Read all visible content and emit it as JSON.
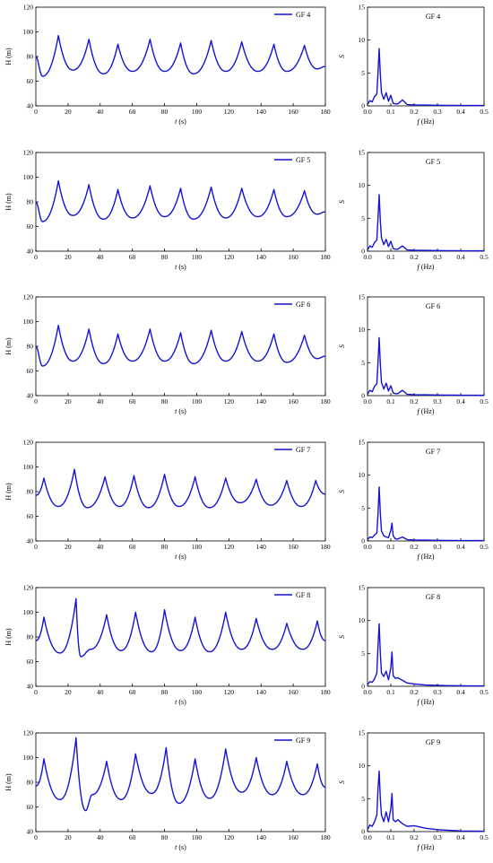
{
  "colors": {
    "series": "#1414d2",
    "axes": "#000000"
  },
  "chart_data": [
    {
      "type": "line",
      "panel": "time",
      "legend": "GF 4",
      "legend_placement": "top-right",
      "xlabel_prefix": "t",
      "xlabel_suffix": " (s)",
      "ylabel": "H (m)",
      "xlim": [
        0,
        180
      ],
      "ylim": [
        40,
        120
      ],
      "xticks": [
        0,
        20,
        40,
        60,
        80,
        100,
        120,
        140,
        160,
        180
      ],
      "yticks": [
        40,
        60,
        80,
        100,
        120
      ],
      "grid": false,
      "peaks": [
        [
          14,
          97
        ],
        [
          33,
          94
        ],
        [
          51,
          90
        ],
        [
          71,
          94
        ],
        [
          90,
          91
        ],
        [
          109,
          93
        ],
        [
          128,
          92
        ],
        [
          148,
          90
        ],
        [
          167,
          89
        ]
      ],
      "troughs": [
        [
          0,
          80
        ],
        [
          4,
          64
        ],
        [
          23,
          69
        ],
        [
          42,
          66
        ],
        [
          60,
          68
        ],
        [
          80,
          68
        ],
        [
          98,
          66
        ],
        [
          118,
          68
        ],
        [
          138,
          68
        ],
        [
          156,
          68
        ],
        [
          175,
          70
        ],
        [
          180,
          72
        ]
      ]
    },
    {
      "type": "line",
      "panel": "spectrum",
      "legend": "GF 4",
      "legend_placement": "top-right",
      "xlabel_prefix": "f",
      "xlabel_suffix": " (Hz)",
      "ylabel": "S",
      "xlim": [
        0,
        0.5
      ],
      "ylim": [
        0,
        15
      ],
      "xticks": [
        "0.0",
        "0.1",
        "0.2",
        "0.3",
        "0.4",
        "0.5"
      ],
      "yticks": [
        0,
        5,
        10,
        15
      ],
      "grid": false,
      "x": [
        0,
        0.01,
        0.02,
        0.03,
        0.04,
        0.045,
        0.05,
        0.055,
        0.06,
        0.07,
        0.08,
        0.09,
        0.1,
        0.11,
        0.12,
        0.13,
        0.15,
        0.17,
        0.2,
        0.25,
        0.3,
        0.35,
        0.4,
        0.45,
        0.5
      ],
      "y": [
        0.2,
        0.8,
        0.6,
        1.4,
        1.8,
        5.0,
        8.7,
        4.8,
        2.0,
        1.0,
        2.0,
        0.7,
        1.6,
        0.4,
        0.3,
        0.3,
        0.9,
        0.2,
        0.15,
        0.12,
        0.1,
        0.08,
        0.06,
        0.05,
        0.05
      ]
    },
    {
      "type": "line",
      "panel": "time",
      "legend": "GF 5",
      "legend_placement": "top-right",
      "xlabel_prefix": "t",
      "xlabel_suffix": " (s)",
      "ylabel": "H (m)",
      "xlim": [
        0,
        180
      ],
      "ylim": [
        40,
        120
      ],
      "xticks": [
        0,
        20,
        40,
        60,
        80,
        100,
        120,
        140,
        160,
        180
      ],
      "yticks": [
        40,
        60,
        80,
        100,
        120
      ],
      "grid": false,
      "peaks": [
        [
          14,
          97
        ],
        [
          33,
          94
        ],
        [
          51,
          90
        ],
        [
          71,
          93
        ],
        [
          90,
          91
        ],
        [
          109,
          92
        ],
        [
          128,
          91
        ],
        [
          148,
          90
        ],
        [
          167,
          89
        ]
      ],
      "troughs": [
        [
          0,
          80
        ],
        [
          4,
          64
        ],
        [
          23,
          69
        ],
        [
          42,
          66
        ],
        [
          60,
          67
        ],
        [
          80,
          68
        ],
        [
          98,
          66
        ],
        [
          118,
          67
        ],
        [
          138,
          68
        ],
        [
          156,
          68
        ],
        [
          175,
          70
        ],
        [
          180,
          72
        ]
      ]
    },
    {
      "type": "line",
      "panel": "spectrum",
      "legend": "GF 5",
      "legend_placement": "top-right",
      "xlabel_prefix": "f",
      "xlabel_suffix": " (Hz)",
      "ylabel": "S",
      "xlim": [
        0,
        0.5
      ],
      "ylim": [
        0,
        15
      ],
      "xticks": [
        "0.0",
        "0.1",
        "0.2",
        "0.3",
        "0.4",
        "0.5"
      ],
      "yticks": [
        0,
        5,
        10,
        15
      ],
      "grid": false,
      "x": [
        0,
        0.01,
        0.02,
        0.03,
        0.04,
        0.045,
        0.05,
        0.055,
        0.06,
        0.07,
        0.08,
        0.09,
        0.1,
        0.11,
        0.12,
        0.13,
        0.15,
        0.17,
        0.2,
        0.25,
        0.3,
        0.35,
        0.4,
        0.45,
        0.5
      ],
      "y": [
        0.2,
        0.8,
        0.6,
        1.3,
        1.7,
        5.0,
        8.6,
        4.6,
        2.0,
        1.0,
        1.8,
        0.7,
        1.5,
        0.4,
        0.3,
        0.3,
        0.8,
        0.2,
        0.15,
        0.12,
        0.1,
        0.08,
        0.06,
        0.05,
        0.05
      ]
    },
    {
      "type": "line",
      "panel": "time",
      "legend": "GF 6",
      "legend_placement": "top-right",
      "xlabel_prefix": "t",
      "xlabel_suffix": " (s)",
      "ylabel": "H (m)",
      "xlim": [
        0,
        180
      ],
      "ylim": [
        40,
        120
      ],
      "xticks": [
        0,
        20,
        40,
        60,
        80,
        100,
        120,
        140,
        160,
        180
      ],
      "yticks": [
        40,
        60,
        80,
        100,
        120
      ],
      "grid": false,
      "peaks": [
        [
          14,
          97
        ],
        [
          33,
          94
        ],
        [
          51,
          90
        ],
        [
          71,
          94
        ],
        [
          90,
          91
        ],
        [
          109,
          93
        ],
        [
          128,
          92
        ],
        [
          148,
          90
        ],
        [
          167,
          89
        ]
      ],
      "troughs": [
        [
          0,
          80
        ],
        [
          4,
          64
        ],
        [
          23,
          68
        ],
        [
          42,
          66
        ],
        [
          60,
          68
        ],
        [
          80,
          68
        ],
        [
          98,
          66
        ],
        [
          118,
          68
        ],
        [
          138,
          68
        ],
        [
          156,
          67
        ],
        [
          175,
          70
        ],
        [
          180,
          72
        ]
      ]
    },
    {
      "type": "line",
      "panel": "spectrum",
      "legend": "GF 6",
      "legend_placement": "top-right",
      "xlabel_prefix": "f",
      "xlabel_suffix": " (Hz)",
      "ylabel": "S",
      "xlim": [
        0,
        0.5
      ],
      "ylim": [
        0,
        15
      ],
      "xticks": [
        "0.0",
        "0.1",
        "0.2",
        "0.3",
        "0.4",
        "0.5"
      ],
      "yticks": [
        0,
        5,
        10,
        15
      ],
      "grid": false,
      "x": [
        0,
        0.01,
        0.02,
        0.03,
        0.04,
        0.045,
        0.05,
        0.055,
        0.06,
        0.07,
        0.08,
        0.09,
        0.1,
        0.11,
        0.12,
        0.13,
        0.15,
        0.17,
        0.2,
        0.25,
        0.3,
        0.35,
        0.4,
        0.45,
        0.5
      ],
      "y": [
        0.2,
        0.8,
        0.6,
        1.4,
        1.8,
        5.0,
        8.8,
        4.8,
        2.0,
        1.0,
        1.9,
        0.7,
        1.5,
        0.4,
        0.3,
        0.3,
        0.8,
        0.2,
        0.15,
        0.12,
        0.1,
        0.08,
        0.06,
        0.05,
        0.05
      ]
    },
    {
      "type": "line",
      "panel": "time",
      "legend": "GF 7",
      "legend_placement": "top-right",
      "xlabel_prefix": "t",
      "xlabel_suffix": " (s)",
      "ylabel": "H (m)",
      "xlim": [
        0,
        180
      ],
      "ylim": [
        40,
        120
      ],
      "xticks": [
        0,
        20,
        40,
        60,
        80,
        100,
        120,
        140,
        160,
        180
      ],
      "yticks": [
        40,
        60,
        80,
        100,
        120
      ],
      "grid": false,
      "peaks": [
        [
          5,
          91
        ],
        [
          24,
          98
        ],
        [
          43,
          92
        ],
        [
          61,
          93
        ],
        [
          80,
          94
        ],
        [
          99,
          92
        ],
        [
          118,
          91
        ],
        [
          137,
          90
        ],
        [
          156,
          89
        ],
        [
          174,
          89
        ]
      ],
      "troughs": [
        [
          0,
          77
        ],
        [
          14,
          68
        ],
        [
          32,
          67
        ],
        [
          52,
          68
        ],
        [
          70,
          67
        ],
        [
          89,
          68
        ],
        [
          108,
          67
        ],
        [
          127,
          71
        ],
        [
          146,
          69
        ],
        [
          165,
          68
        ],
        [
          180,
          78
        ]
      ]
    },
    {
      "type": "line",
      "panel": "spectrum",
      "legend": "GF 7",
      "legend_placement": "top-right",
      "xlabel_prefix": "f",
      "xlabel_suffix": " (Hz)",
      "ylabel": "S",
      "xlim": [
        0,
        0.5
      ],
      "ylim": [
        0,
        15
      ],
      "xticks": [
        "0.0",
        "0.1",
        "0.2",
        "0.3",
        "0.4",
        "0.5"
      ],
      "yticks": [
        0,
        5,
        10,
        15
      ],
      "grid": false,
      "x": [
        0,
        0.01,
        0.02,
        0.03,
        0.04,
        0.045,
        0.05,
        0.055,
        0.06,
        0.07,
        0.08,
        0.09,
        0.1,
        0.105,
        0.11,
        0.12,
        0.13,
        0.15,
        0.17,
        0.2,
        0.25,
        0.3,
        0.35,
        0.4,
        0.45,
        0.5
      ],
      "y": [
        0.2,
        0.6,
        0.5,
        0.9,
        1.2,
        4.0,
        8.2,
        4.2,
        1.5,
        0.8,
        0.6,
        0.5,
        1.6,
        2.7,
        0.8,
        0.3,
        0.3,
        0.6,
        0.2,
        0.15,
        0.12,
        0.1,
        0.08,
        0.06,
        0.05,
        0.05
      ]
    },
    {
      "type": "line",
      "panel": "time",
      "legend": "GF 8",
      "legend_placement": "top-right",
      "xlabel_prefix": "t",
      "xlabel_suffix": " (s)",
      "ylabel": "H (m)",
      "xlim": [
        0,
        180
      ],
      "ylim": [
        40,
        120
      ],
      "xticks": [
        0,
        20,
        40,
        60,
        80,
        100,
        120,
        140,
        160,
        180
      ],
      "yticks": [
        40,
        60,
        80,
        100,
        120
      ],
      "grid": false,
      "peaks": [
        [
          5,
          96
        ],
        [
          25,
          111
        ],
        [
          44,
          98
        ],
        [
          62,
          100
        ],
        [
          80,
          102
        ],
        [
          99,
          96
        ],
        [
          118,
          100
        ],
        [
          137,
          95
        ],
        [
          156,
          91
        ],
        [
          175,
          93
        ]
      ],
      "troughs": [
        [
          0,
          77
        ],
        [
          15,
          67
        ],
        [
          28,
          64
        ],
        [
          34,
          70
        ],
        [
          53,
          69
        ],
        [
          72,
          68
        ],
        [
          90,
          69
        ],
        [
          108,
          68
        ],
        [
          128,
          70
        ],
        [
          147,
          70
        ],
        [
          166,
          70
        ],
        [
          180,
          77
        ]
      ]
    },
    {
      "type": "line",
      "panel": "spectrum",
      "legend": "GF 8",
      "legend_placement": "top-right",
      "xlabel_prefix": "f",
      "xlabel_suffix": " (Hz)",
      "ylabel": "S",
      "xlim": [
        0,
        0.5
      ],
      "ylim": [
        0,
        15
      ],
      "xticks": [
        "0.0",
        "0.1",
        "0.2",
        "0.3",
        "0.4",
        "0.5"
      ],
      "yticks": [
        0,
        5,
        10,
        15
      ],
      "grid": false,
      "x": [
        0,
        0.01,
        0.02,
        0.03,
        0.04,
        0.045,
        0.05,
        0.055,
        0.06,
        0.07,
        0.08,
        0.09,
        0.1,
        0.105,
        0.11,
        0.12,
        0.13,
        0.15,
        0.17,
        0.2,
        0.25,
        0.3,
        0.35,
        0.4,
        0.45,
        0.5
      ],
      "y": [
        0.2,
        0.7,
        0.6,
        1.1,
        2.0,
        6.0,
        9.5,
        5.0,
        2.0,
        1.5,
        2.3,
        1.0,
        2.8,
        5.2,
        1.6,
        1.2,
        1.3,
        0.9,
        0.5,
        0.35,
        0.2,
        0.15,
        0.1,
        0.08,
        0.06,
        0.05
      ]
    },
    {
      "type": "line",
      "panel": "time",
      "legend": "GF 9",
      "legend_placement": "top-right",
      "xlabel_prefix": "t",
      "xlabel_suffix": " (s)",
      "ylabel": "H (m)",
      "xlim": [
        0,
        180
      ],
      "ylim": [
        40,
        120
      ],
      "xticks": [
        0,
        20,
        40,
        60,
        80,
        100,
        120,
        140,
        160,
        180
      ],
      "yticks": [
        40,
        60,
        80,
        100,
        120
      ],
      "grid": false,
      "peaks": [
        [
          5,
          99
        ],
        [
          25,
          116
        ],
        [
          44,
          97
        ],
        [
          62,
          103
        ],
        [
          81,
          108
        ],
        [
          99,
          99
        ],
        [
          118,
          107
        ],
        [
          137,
          100
        ],
        [
          156,
          97
        ],
        [
          175,
          95
        ]
      ],
      "troughs": [
        [
          0,
          77
        ],
        [
          15,
          66
        ],
        [
          31,
          57
        ],
        [
          35,
          70
        ],
        [
          53,
          66
        ],
        [
          72,
          71
        ],
        [
          89,
          63
        ],
        [
          108,
          67
        ],
        [
          128,
          72
        ],
        [
          147,
          70
        ],
        [
          166,
          70
        ],
        [
          180,
          76
        ]
      ]
    },
    {
      "type": "line",
      "panel": "spectrum",
      "legend": "GF 9",
      "legend_placement": "top-right",
      "xlabel_prefix": "f",
      "xlabel_suffix": " (Hz)",
      "ylabel": "S",
      "xlim": [
        0,
        0.5
      ],
      "ylim": [
        0,
        15
      ],
      "xticks": [
        "0.0",
        "0.1",
        "0.2",
        "0.3",
        "0.4",
        "0.5"
      ],
      "yticks": [
        0,
        5,
        10,
        15
      ],
      "grid": false,
      "x": [
        0,
        0.01,
        0.02,
        0.03,
        0.04,
        0.045,
        0.05,
        0.055,
        0.06,
        0.07,
        0.08,
        0.09,
        0.1,
        0.105,
        0.11,
        0.12,
        0.13,
        0.15,
        0.17,
        0.2,
        0.25,
        0.3,
        0.35,
        0.4,
        0.45,
        0.5
      ],
      "y": [
        0.3,
        1.0,
        0.8,
        1.5,
        2.5,
        6.5,
        9.2,
        5.0,
        2.5,
        1.5,
        3.0,
        1.5,
        3.5,
        5.8,
        1.8,
        1.5,
        1.8,
        1.2,
        0.8,
        0.9,
        0.5,
        0.3,
        0.2,
        0.1,
        0.08,
        0.06
      ]
    }
  ]
}
